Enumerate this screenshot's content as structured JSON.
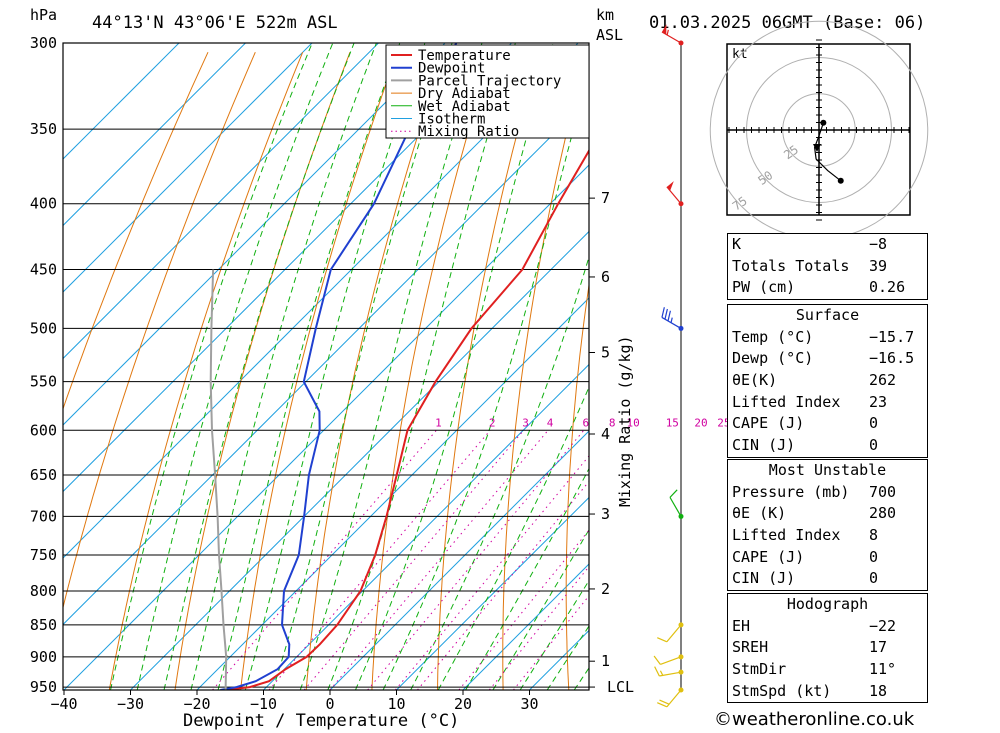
{
  "header": {
    "pressure_unit": "hPa",
    "location": "44°13'N 43°06'E 522m ASL",
    "height_unit": "km",
    "height_ref": "ASL",
    "datetime": "01.03.2025 06GMT (Base: 06)"
  },
  "footer": {
    "copyright": "©weatheronline.co.uk"
  },
  "colors": {
    "temperature": "#e02020",
    "dewpoint": "#2040d0",
    "parcel": "#a0a0a0",
    "dry_adiabat": "#e07810",
    "wet_adiabat": "#10b010",
    "isotherm": "#20a0e0",
    "mixing_ratio": "#d000a0"
  },
  "chart_data": {
    "type": "line",
    "title": "44°13'N 43°06'E 522m ASL",
    "xlabel": "Dewpoint / Temperature (°C)",
    "ylabel": "hPa",
    "y_right_label": "Mixing Ratio (g/kg)",
    "xlim": [
      -40,
      39
    ],
    "ylim": [
      955,
      300
    ],
    "y_scale": "log",
    "x_ticks": [
      "-40",
      "-30",
      "-20",
      "-10",
      "0",
      "10",
      "20",
      "30"
    ],
    "pressure_levels": [
      300,
      350,
      400,
      450,
      500,
      550,
      600,
      650,
      700,
      750,
      800,
      850,
      900,
      950
    ],
    "km_ticks": [
      {
        "label": "7",
        "p": 396
      },
      {
        "label": "6",
        "p": 456
      },
      {
        "label": "5",
        "p": 522
      },
      {
        "label": "4",
        "p": 604
      },
      {
        "label": "3",
        "p": 697
      },
      {
        "label": "2",
        "p": 797
      },
      {
        "label": "1",
        "p": 907
      },
      {
        "label": "LCL",
        "p": 950
      }
    ],
    "mixing_ratio_labels": [
      "1",
      "2",
      "3",
      "4",
      "6",
      "8",
      "10",
      "15",
      "20",
      "25"
    ],
    "legend": {
      "position": "top-right",
      "entries": [
        "Temperature",
        "Dewpoint",
        "Parcel Trajectory",
        "Dry Adiabat",
        "Wet Adiabat",
        "Isotherm",
        "Mixing Ratio"
      ]
    },
    "series": [
      {
        "name": "Temperature",
        "p": [
          955,
          950,
          940,
          920,
          900,
          880,
          850,
          800,
          750,
          700,
          650,
          600,
          550,
          500,
          450,
          400,
          350,
          300
        ],
        "t": [
          -15.7,
          -12.5,
          -10.5,
          -9.8,
          -8.5,
          -8.4,
          -8.7,
          -10.3,
          -13.5,
          -17.6,
          -22.3,
          -27.4,
          -30.5,
          -33.1,
          -34.3,
          -38.8,
          -43.5,
          -48.6
        ]
      },
      {
        "name": "Dewpoint",
        "p": [
          955,
          950,
          940,
          920,
          900,
          880,
          850,
          800,
          750,
          700,
          650,
          600,
          580,
          550,
          500,
          450,
          400,
          350,
          300
        ],
        "t": [
          -16.5,
          -14.5,
          -12.5,
          -11.0,
          -11.2,
          -13.0,
          -17.0,
          -21.8,
          -25.0,
          -30.0,
          -35.5,
          -40.6,
          -43.5,
          -50.3,
          -56.5,
          -63.1,
          -66.5,
          -72.4,
          -78.3
        ]
      },
      {
        "name": "Parcel Trajectory",
        "p": [
          955,
          900,
          850,
          800,
          750,
          700,
          650,
          600,
          550,
          500,
          450
        ],
        "t": [
          -15.7,
          -20.6,
          -25.8,
          -31.2,
          -37.0,
          -43.0,
          -49.6,
          -56.8,
          -64.3,
          -72.2,
          -80.8
        ]
      }
    ]
  },
  "wind_profile": [
    {
      "p": 300,
      "color": "#e02020",
      "dir": 300,
      "spd": 55
    },
    {
      "p": 400,
      "color": "#e02020",
      "dir": 320,
      "spd": 50
    },
    {
      "p": 500,
      "color": "#2040d0",
      "dir": 300,
      "spd": 35
    },
    {
      "p": 700,
      "color": "#10b010",
      "dir": 330,
      "spd": 10
    },
    {
      "p": 850,
      "color": "#e0c010",
      "dir": 220,
      "spd": 10
    },
    {
      "p": 900,
      "color": "#e0c010",
      "dir": 250,
      "spd": 12
    },
    {
      "p": 925,
      "color": "#e0c010",
      "dir": 260,
      "spd": 15
    },
    {
      "p": 955,
      "color": "#e0c010",
      "dir": 220,
      "spd": 18
    }
  ],
  "hodograph": {
    "unit_label": "kt",
    "ring_labels": [
      "25",
      "50",
      "75"
    ],
    "points": [
      [
        3,
        5
      ],
      [
        0,
        -4
      ],
      [
        -3,
        -12
      ],
      [
        -2,
        -20
      ],
      [
        6,
        -28
      ],
      [
        15,
        -35
      ]
    ]
  },
  "indices": {
    "general": [
      {
        "label": "K",
        "value": "-8"
      },
      {
        "label": "Totals Totals",
        "value": "39"
      },
      {
        "label": "PW (cm)",
        "value": "0.26"
      }
    ],
    "surface": {
      "title": "Surface",
      "rows": [
        {
          "label": "Temp (°C)",
          "value": "-15.7"
        },
        {
          "label": "Dewp (°C)",
          "value": "-16.5"
        },
        {
          "label": "θE(K)",
          "value": "262"
        },
        {
          "label": "Lifted Index",
          "value": "23"
        },
        {
          "label": "CAPE (J)",
          "value": "0"
        },
        {
          "label": "CIN (J)",
          "value": "0"
        }
      ]
    },
    "most_unstable": {
      "title": "Most Unstable",
      "rows": [
        {
          "label": "Pressure (mb)",
          "value": "700"
        },
        {
          "label": "θE (K)",
          "value": "280"
        },
        {
          "label": "Lifted Index",
          "value": "8"
        },
        {
          "label": "CAPE (J)",
          "value": "0"
        },
        {
          "label": "CIN (J)",
          "value": "0"
        }
      ]
    },
    "hodograph": {
      "title": "Hodograph",
      "rows": [
        {
          "label": "EH",
          "value": "-22"
        },
        {
          "label": "SREH",
          "value": "17"
        },
        {
          "label": "StmDir",
          "value": "11°"
        },
        {
          "label": "StmSpd (kt)",
          "value": "18"
        }
      ]
    }
  }
}
